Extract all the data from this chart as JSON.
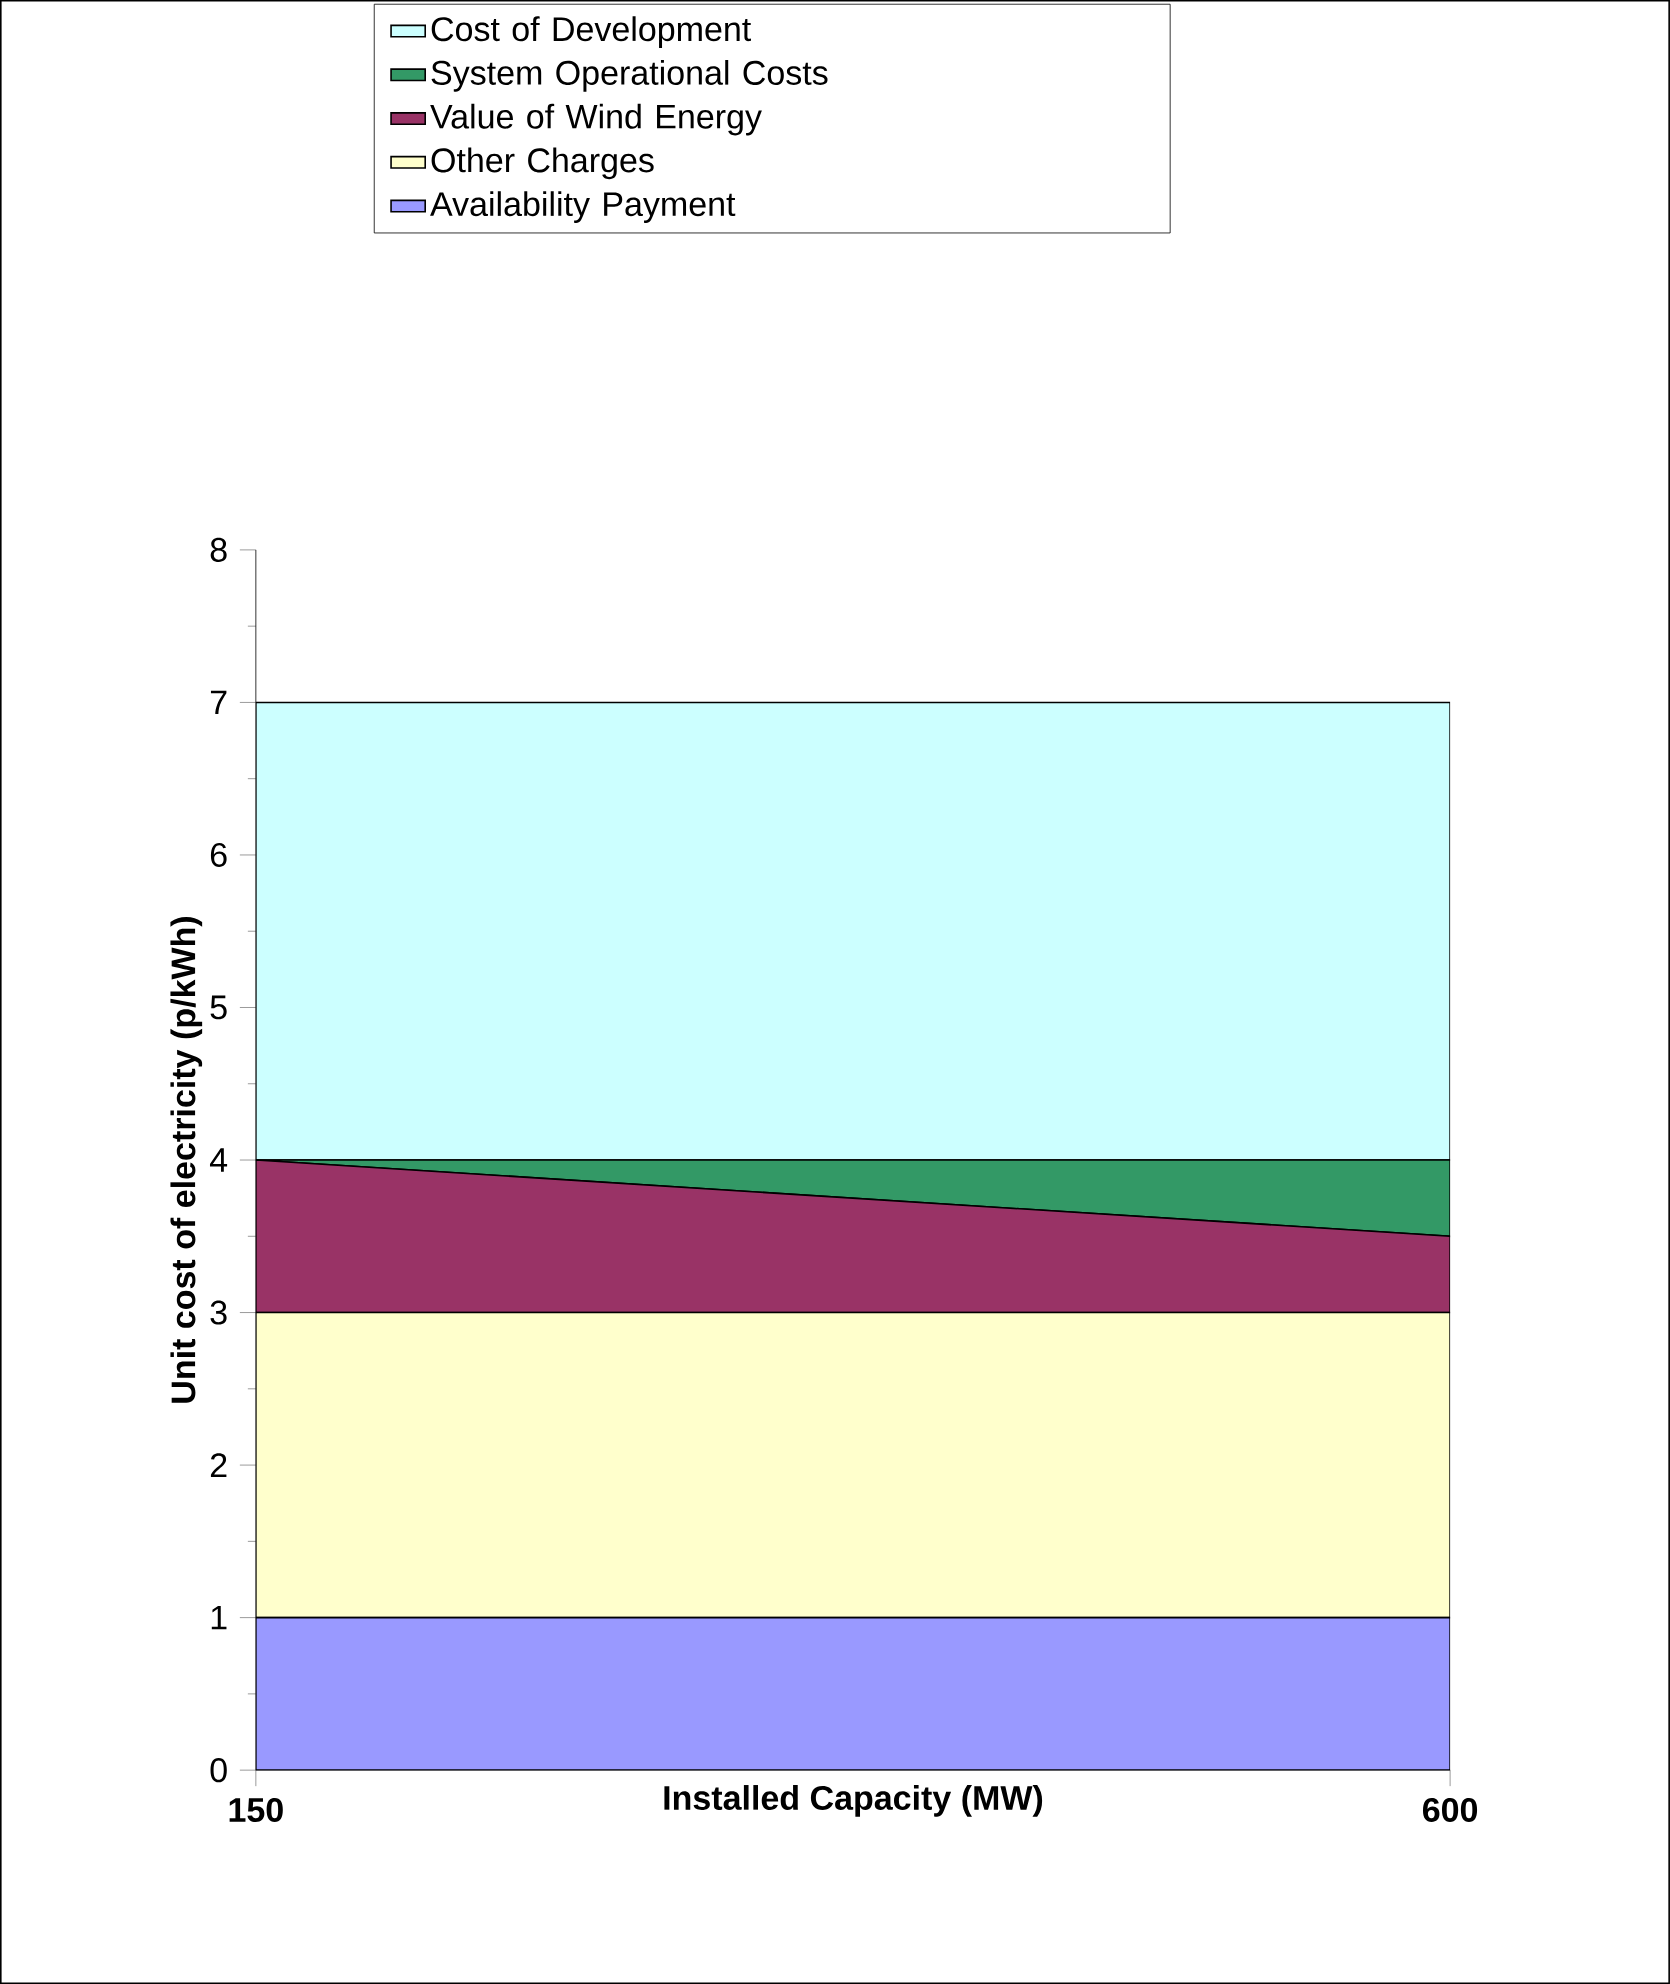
{
  "chart_data": {
    "type": "area",
    "stacked": true,
    "xlabel": "Installed Capacity (MW)",
    "ylabel": "Unit cost of electricity (p/kWh)",
    "categories": [
      "150",
      "600"
    ],
    "series": [
      {
        "name": "Availability Payment",
        "color": "#9999ff",
        "values": [
          1,
          1
        ]
      },
      {
        "name": "Other Charges",
        "color": "#ffffcc",
        "values": [
          2,
          2
        ]
      },
      {
        "name": "Value of Wind Energy",
        "color": "#993366",
        "values": [
          1,
          0.5
        ]
      },
      {
        "name": "System Operational Costs",
        "color": "#339966",
        "values": [
          0,
          0.5
        ]
      },
      {
        "name": "Cost of Development",
        "color": "#ccffff",
        "values": [
          3,
          3
        ]
      }
    ],
    "ylim": [
      0,
      8
    ],
    "yticks": [
      0,
      1,
      2,
      3,
      4,
      5,
      6,
      7,
      8
    ],
    "grid": false,
    "legend": "top"
  }
}
